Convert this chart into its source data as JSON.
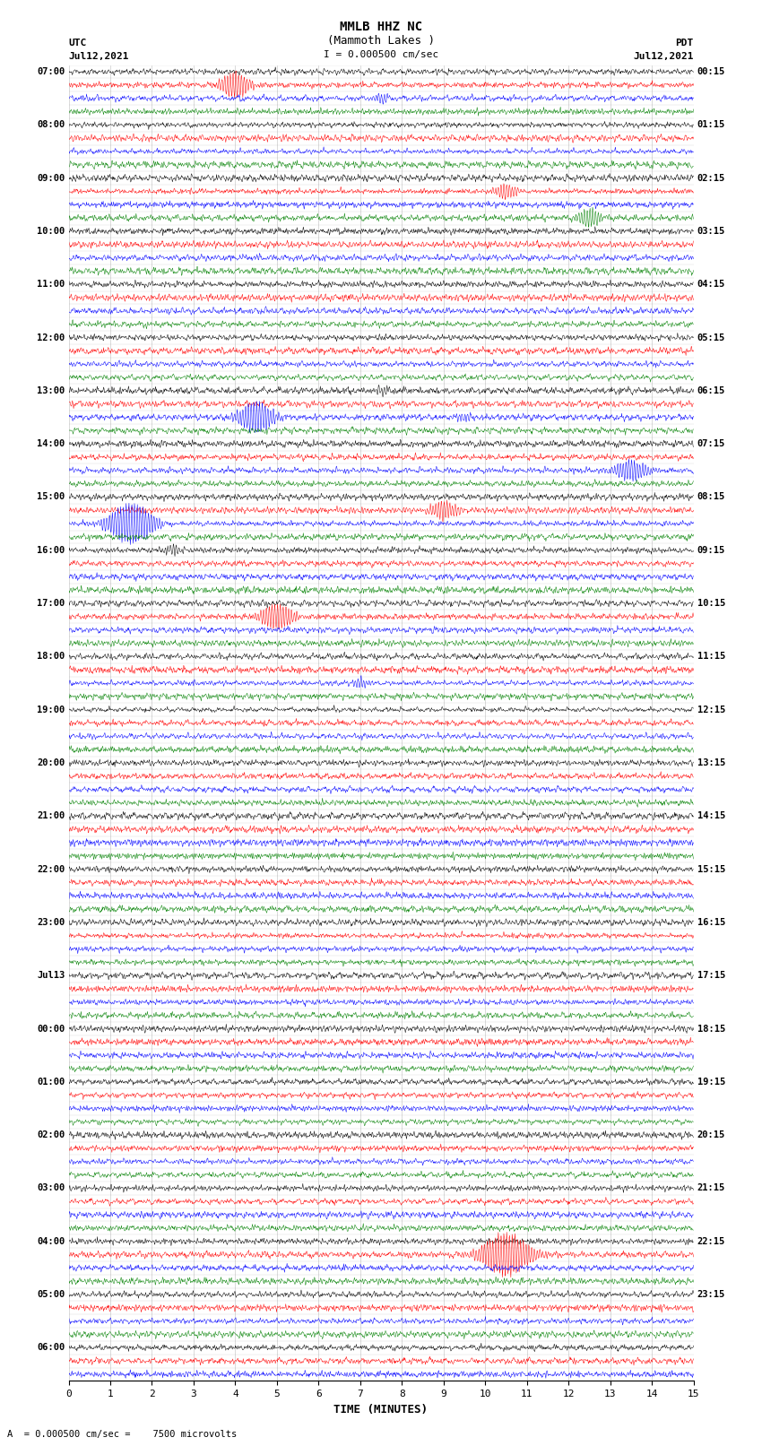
{
  "title_line1": "MMLB HHZ NC",
  "title_line2": "(Mammoth Lakes )",
  "title_scale": "I = 0.000500 cm/sec",
  "left_label_top": "UTC",
  "left_label_date": "Jul12,2021",
  "right_label_top": "PDT",
  "right_label_date": "Jul12,2021",
  "xlabel": "TIME (MINUTES)",
  "bottom_note": "A  = 0.000500 cm/sec =    7500 microvolts",
  "background_color": "#ffffff",
  "trace_colors": [
    "black",
    "red",
    "blue",
    "green"
  ],
  "utc_labels": [
    "07:00",
    "",
    "",
    "",
    "08:00",
    "",
    "",
    "",
    "09:00",
    "",
    "",
    "",
    "10:00",
    "",
    "",
    "",
    "11:00",
    "",
    "",
    "",
    "12:00",
    "",
    "",
    "",
    "13:00",
    "",
    "",
    "",
    "14:00",
    "",
    "",
    "",
    "15:00",
    "",
    "",
    "",
    "16:00",
    "",
    "",
    "",
    "17:00",
    "",
    "",
    "",
    "18:00",
    "",
    "",
    "",
    "19:00",
    "",
    "",
    "",
    "20:00",
    "",
    "",
    "",
    "21:00",
    "",
    "",
    "",
    "22:00",
    "",
    "",
    "",
    "23:00",
    "",
    "",
    "",
    "Jul13",
    "",
    "",
    "",
    "00:00",
    "",
    "",
    "",
    "01:00",
    "",
    "",
    "",
    "02:00",
    "",
    "",
    "",
    "03:00",
    "",
    "",
    "",
    "04:00",
    "",
    "",
    "",
    "05:00",
    "",
    "",
    "",
    "06:00",
    "",
    ""
  ],
  "pdt_labels": [
    "00:15",
    "",
    "",
    "",
    "01:15",
    "",
    "",
    "",
    "02:15",
    "",
    "",
    "",
    "03:15",
    "",
    "",
    "",
    "04:15",
    "",
    "",
    "",
    "05:15",
    "",
    "",
    "",
    "06:15",
    "",
    "",
    "",
    "07:15",
    "",
    "",
    "",
    "08:15",
    "",
    "",
    "",
    "09:15",
    "",
    "",
    "",
    "10:15",
    "",
    "",
    "",
    "11:15",
    "",
    "",
    "",
    "12:15",
    "",
    "",
    "",
    "13:15",
    "",
    "",
    "",
    "14:15",
    "",
    "",
    "",
    "15:15",
    "",
    "",
    "",
    "16:15",
    "",
    "",
    "",
    "17:15",
    "",
    "",
    "",
    "18:15",
    "",
    "",
    "",
    "19:15",
    "",
    "",
    "",
    "20:15",
    "",
    "",
    "",
    "21:15",
    "",
    "",
    "",
    "22:15",
    "",
    "",
    "",
    "23:15",
    "",
    "",
    "",
    "",
    "",
    ""
  ],
  "xmin": 0,
  "xmax": 15,
  "xticks": [
    0,
    1,
    2,
    3,
    4,
    5,
    6,
    7,
    8,
    9,
    10,
    11,
    12,
    13,
    14,
    15
  ],
  "figsize": [
    8.5,
    16.13
  ],
  "dpi": 100
}
